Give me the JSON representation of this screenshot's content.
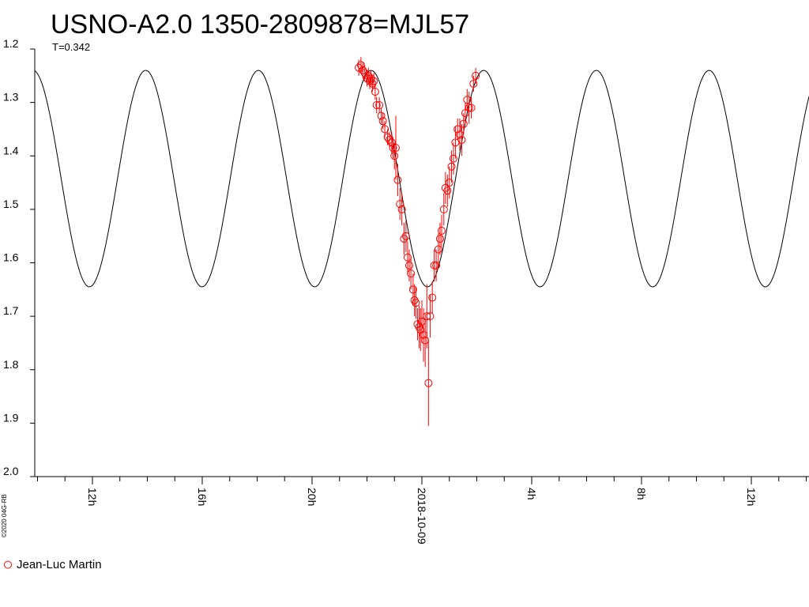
{
  "chart_data": {
    "type": "scatter",
    "title": "USNO-A2.0 1350-2809878=MJL57",
    "subtitle": "T=0.342",
    "credit": "©2020 04G-RB",
    "xlabel": "",
    "ylabel": "",
    "x_unit": "hours relative to 2018-10-09 00:00",
    "xlim": [
      -14.1,
      14.1
    ],
    "ylim": [
      1.2,
      2.0
    ],
    "y_inverted": true,
    "yticks": [
      "1.2",
      "1.3",
      "1.4",
      "1.5",
      "1.6",
      "1.7",
      "1.8",
      "1.9",
      "2.0"
    ],
    "xticks": [
      {
        "hour": -12,
        "label": "12h"
      },
      {
        "hour": -8,
        "label": "16h"
      },
      {
        "hour": -4,
        "label": "20h"
      },
      {
        "hour": 0,
        "label": "2018-10-09"
      },
      {
        "hour": 4,
        "label": "4h"
      },
      {
        "hour": 8,
        "label": "8h"
      },
      {
        "hour": 12,
        "label": "12h"
      }
    ],
    "model_curve": {
      "period_hours": 4.104,
      "max_brightness": 1.24,
      "min_brightness": 1.645,
      "minimum_at_hour": 0.2,
      "color": "#000000"
    },
    "series": [
      {
        "name": "Jean-Luc Martin",
        "color": "#ff0000",
        "points": [
          [
            -2.3,
            1.235,
            0.015
          ],
          [
            -2.22,
            1.23,
            0.015
          ],
          [
            -2.15,
            1.24,
            0.015
          ],
          [
            -2.08,
            1.245,
            0.015
          ],
          [
            -2.0,
            1.255,
            0.015
          ],
          [
            -1.95,
            1.25,
            0.015
          ],
          [
            -1.9,
            1.26,
            0.015
          ],
          [
            -1.85,
            1.255,
            0.015
          ],
          [
            -1.8,
            1.265,
            0.015
          ],
          [
            -1.75,
            1.26,
            0.015
          ],
          [
            -1.7,
            1.28,
            0.015
          ],
          [
            -1.65,
            1.305,
            0.015
          ],
          [
            -1.55,
            1.305,
            0.015
          ],
          [
            -1.48,
            1.325,
            0.015
          ],
          [
            -1.42,
            1.335,
            0.015
          ],
          [
            -1.35,
            1.35,
            0.015
          ],
          [
            -1.25,
            1.365,
            0.015
          ],
          [
            -1.18,
            1.37,
            0.015
          ],
          [
            -1.1,
            1.375,
            0.02
          ],
          [
            -1.05,
            1.385,
            0.02
          ],
          [
            -1.0,
            1.4,
            0.025
          ],
          [
            -0.95,
            1.385,
            0.06
          ],
          [
            -0.88,
            1.445,
            0.03
          ],
          [
            -0.8,
            1.49,
            0.03
          ],
          [
            -0.73,
            1.5,
            0.03
          ],
          [
            -0.65,
            1.555,
            0.03
          ],
          [
            -0.58,
            1.55,
            0.03
          ],
          [
            -0.52,
            1.59,
            0.03
          ],
          [
            -0.46,
            1.605,
            0.03
          ],
          [
            -0.4,
            1.62,
            0.03
          ],
          [
            -0.32,
            1.65,
            0.03
          ],
          [
            -0.27,
            1.67,
            0.03
          ],
          [
            -0.22,
            1.675,
            0.03
          ],
          [
            -0.16,
            1.715,
            0.03
          ],
          [
            -0.1,
            1.72,
            0.04
          ],
          [
            -0.05,
            1.725,
            0.04
          ],
          [
            0.0,
            1.71,
            0.04
          ],
          [
            0.06,
            1.735,
            0.05
          ],
          [
            0.12,
            1.745,
            0.05
          ],
          [
            0.18,
            1.7,
            0.06
          ],
          [
            0.24,
            1.825,
            0.08
          ],
          [
            0.3,
            1.7,
            0.04
          ],
          [
            0.38,
            1.665,
            0.03
          ],
          [
            0.45,
            1.605,
            0.03
          ],
          [
            0.52,
            1.605,
            0.03
          ],
          [
            0.6,
            1.575,
            0.03
          ],
          [
            0.66,
            1.555,
            0.03
          ],
          [
            0.72,
            1.54,
            0.03
          ],
          [
            0.8,
            1.5,
            0.03
          ],
          [
            0.86,
            1.46,
            0.03
          ],
          [
            0.93,
            1.465,
            0.03
          ],
          [
            1.0,
            1.45,
            0.03
          ],
          [
            1.08,
            1.42,
            0.03
          ],
          [
            1.15,
            1.405,
            0.03
          ],
          [
            1.22,
            1.375,
            0.03
          ],
          [
            1.3,
            1.35,
            0.02
          ],
          [
            1.38,
            1.36,
            0.03
          ],
          [
            1.45,
            1.37,
            0.03
          ],
          [
            1.52,
            1.34,
            0.02
          ],
          [
            1.58,
            1.32,
            0.02
          ],
          [
            1.65,
            1.295,
            0.02
          ],
          [
            1.72,
            1.31,
            0.03
          ],
          [
            1.8,
            1.31,
            0.02
          ],
          [
            1.88,
            1.265,
            0.015
          ],
          [
            1.96,
            1.25,
            0.015
          ]
        ]
      }
    ],
    "legend": {
      "position": "bottom-left",
      "entries": [
        "Jean-Luc Martin"
      ]
    }
  }
}
